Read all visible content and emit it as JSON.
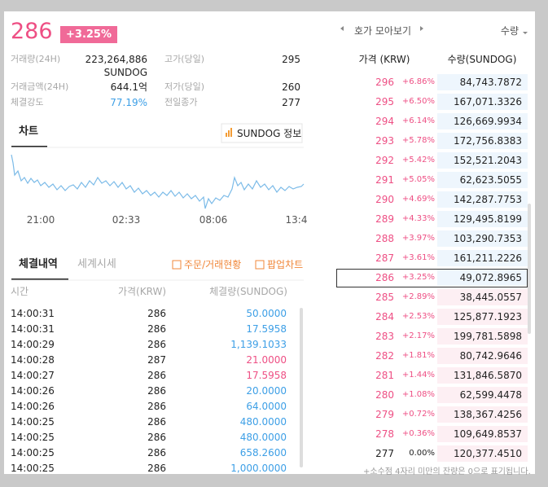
{
  "header": {
    "price": "286",
    "change": "+3.25%"
  },
  "stats": {
    "left": [
      {
        "label": "거래량(24H)",
        "value": "223,264,886",
        "unit": "SUNDOG"
      },
      {
        "label": "거래금액(24H)",
        "value": "644.1억"
      },
      {
        "label": "체결강도",
        "value": "77.19%"
      }
    ],
    "right": [
      {
        "label": "고가(당일)",
        "value": "295"
      },
      {
        "label": "저가(당일)",
        "value": "260"
      },
      {
        "label": "전일종가",
        "value": "277"
      }
    ]
  },
  "chart": {
    "tab": "차트",
    "info_button": "SUNDOG 정보",
    "x_labels": [
      "21:00",
      "02:33",
      "08:06",
      "13:4"
    ],
    "line_color": "#7cbbe8"
  },
  "trades": {
    "tabs": [
      "체결내역",
      "세계시세"
    ],
    "links": [
      "주문/거래현황",
      "팝업차트"
    ],
    "columns": [
      "시간",
      "가격(KRW)",
      "체결량(SUNDOG)"
    ],
    "rows": [
      [
        "14:00:31",
        "286",
        "50.0000"
      ],
      [
        "14:00:31",
        "286",
        "17.5958"
      ],
      [
        "14:00:29",
        "286",
        "1,139.1033"
      ],
      [
        "14:00:28",
        "287",
        "21.0000"
      ],
      [
        "14:00:27",
        "286",
        "17.5958"
      ],
      [
        "14:00:26",
        "286",
        "20.0000"
      ],
      [
        "14:00:26",
        "286",
        "64.0000"
      ],
      [
        "14:00:25",
        "286",
        "480.0000"
      ],
      [
        "14:00:25",
        "286",
        "480.0000"
      ],
      [
        "14:00:25",
        "286",
        "658.2600"
      ],
      [
        "14:00:25",
        "286",
        "1,000.0000"
      ]
    ],
    "colors": [
      "#3d9fe6",
      "#3d9fe6",
      "#3d9fe6",
      "#ee4f84",
      "#ee4f84",
      "#3d9fe6",
      "#3d9fe6",
      "#3d9fe6",
      "#3d9fe6",
      "#3d9fe6",
      "#3d9fe6"
    ]
  },
  "order_book": {
    "view": "호가 모아보기",
    "sort": "수량",
    "columns": [
      "가격 (KRW)",
      "수량(SUNDOG)"
    ],
    "ask_bar_color": "#eef6fd",
    "bid_bar_color": "#fdeff3",
    "asks": [
      [
        "296",
        "+6.86%",
        "84,743.7872"
      ],
      [
        "295",
        "+6.50%",
        "167,071.3326"
      ],
      [
        "294",
        "+6.14%",
        "126,669.9934"
      ],
      [
        "293",
        "+5.78%",
        "172,756.8383"
      ],
      [
        "292",
        "+5.42%",
        "152,521.2043"
      ],
      [
        "291",
        "+5.05%",
        "62,623.5055"
      ],
      [
        "290",
        "+4.69%",
        "142,287.7753"
      ],
      [
        "289",
        "+4.33%",
        "129,495.8199"
      ],
      [
        "288",
        "+3.97%",
        "103,290.7353"
      ],
      [
        "287",
        "+3.61%",
        "161,211.2226"
      ],
      [
        "286",
        "+3.25%",
        "49,072.8965"
      ]
    ],
    "bids": [
      [
        "285",
        "+2.89%",
        "38,445.0557"
      ],
      [
        "284",
        "+2.53%",
        "125,877.1923"
      ],
      [
        "283",
        "+2.17%",
        "199,781.5898"
      ],
      [
        "282",
        "+1.81%",
        "80,742.9646"
      ],
      [
        "281",
        "+1.44%",
        "131,846.5870"
      ],
      [
        "280",
        "+1.08%",
        "62,599.4478"
      ],
      [
        "279",
        "+0.72%",
        "138,367.4256"
      ],
      [
        "278",
        "+0.36%",
        "109,649.8537"
      ],
      [
        "277",
        "0.00%",
        "120,377.4510"
      ]
    ],
    "footnote": "+소수점 4자리 미만의 잔량은 0으로 표기됩니다."
  }
}
